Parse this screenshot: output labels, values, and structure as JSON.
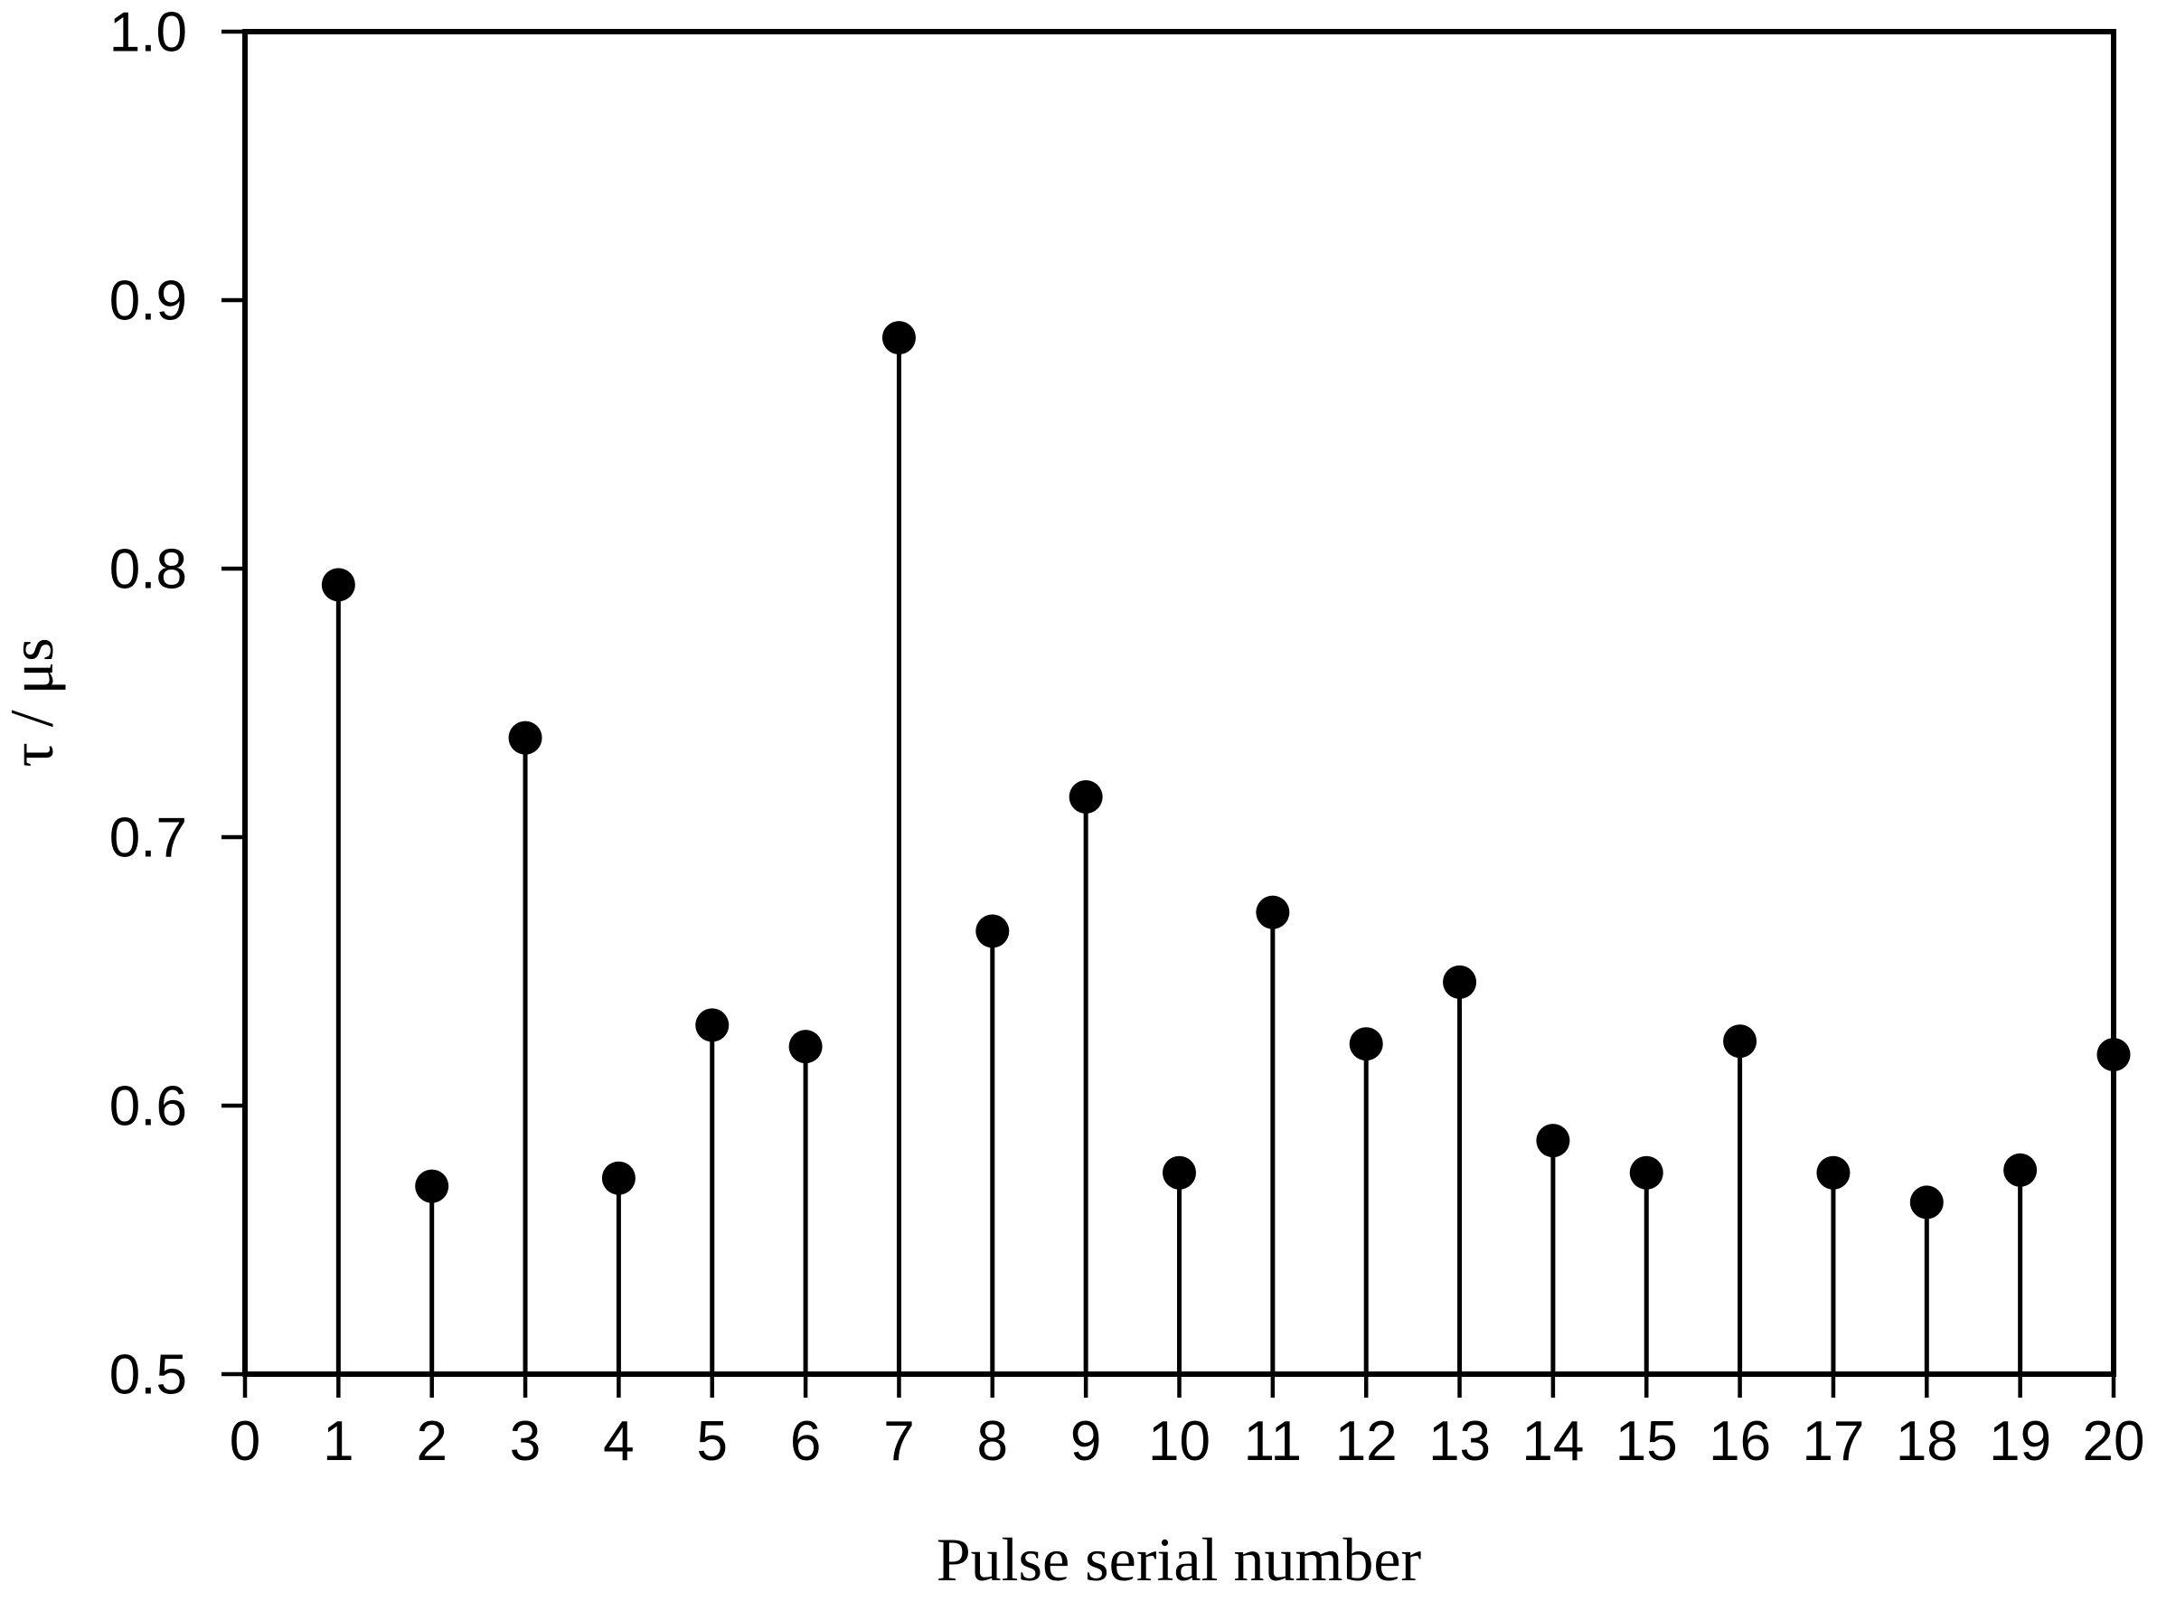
{
  "page": {
    "background": "#ffffff",
    "foreground": "#000000"
  },
  "chart_data": {
    "type": "scatter",
    "subtype": "stem",
    "title": "",
    "xlabel": "Pulse serial number",
    "ylabel": "τ / μs",
    "x": [
      1,
      2,
      3,
      4,
      5,
      6,
      7,
      8,
      9,
      10,
      11,
      12,
      13,
      14,
      15,
      16,
      17,
      18,
      19,
      20
    ],
    "y": [
      0.794,
      0.57,
      0.737,
      0.573,
      0.63,
      0.622,
      0.886,
      0.665,
      0.715,
      0.575,
      0.672,
      0.623,
      0.646,
      0.587,
      0.575,
      0.624,
      0.575,
      0.564,
      0.576,
      0.619
    ],
    "baseline": 0.5,
    "xlim": [
      0,
      20
    ],
    "ylim": [
      0.5,
      1.0
    ],
    "x_ticks": [
      0,
      1,
      2,
      3,
      4,
      5,
      6,
      7,
      8,
      9,
      10,
      11,
      12,
      13,
      14,
      15,
      16,
      17,
      18,
      19,
      20
    ],
    "x_tick_labels": [
      "0",
      "1",
      "2",
      "3",
      "4",
      "5",
      "6",
      "7",
      "8",
      "9",
      "10",
      "11",
      "12",
      "13",
      "14",
      "15",
      "16",
      "17",
      "18",
      "19",
      "20"
    ],
    "y_ticks": [
      0.5,
      0.6,
      0.7,
      0.8,
      0.9,
      1.0
    ],
    "y_tick_labels": [
      "0.5",
      "0.6",
      "0.7",
      "0.8",
      "0.9",
      "1.0"
    ],
    "grid": false,
    "legend": false,
    "marker": {
      "shape": "filled-circle",
      "color": "#000000"
    },
    "stem_color": "#000000",
    "axis_color": "#000000",
    "plot_background": "#ffffff"
  }
}
